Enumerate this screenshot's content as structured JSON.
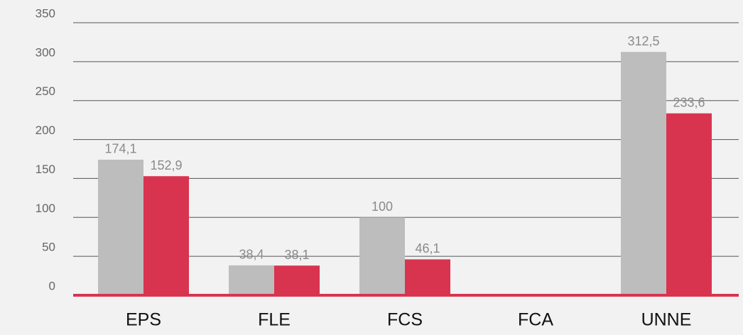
{
  "chart_data": {
    "type": "bar",
    "categories": [
      "EPS",
      "FLE",
      "FCS",
      "FCA",
      "UNNE"
    ],
    "series": [
      {
        "color": "#bdbdbd",
        "values": [
          174.1,
          38.4,
          100,
          null,
          312.5
        ],
        "value_labels": [
          "174,1",
          "38,4",
          "100",
          null,
          "312,5"
        ]
      },
      {
        "color": "#d9344f",
        "values": [
          152.9,
          38.1,
          46.1,
          null,
          233.6
        ],
        "value_labels": [
          "152,9",
          "38,1",
          "46,1",
          null,
          "233,6"
        ]
      }
    ],
    "ylim": [
      0,
      350
    ],
    "yticks": [
      0,
      50,
      100,
      150,
      200,
      250,
      300,
      350
    ],
    "grid": true
  }
}
